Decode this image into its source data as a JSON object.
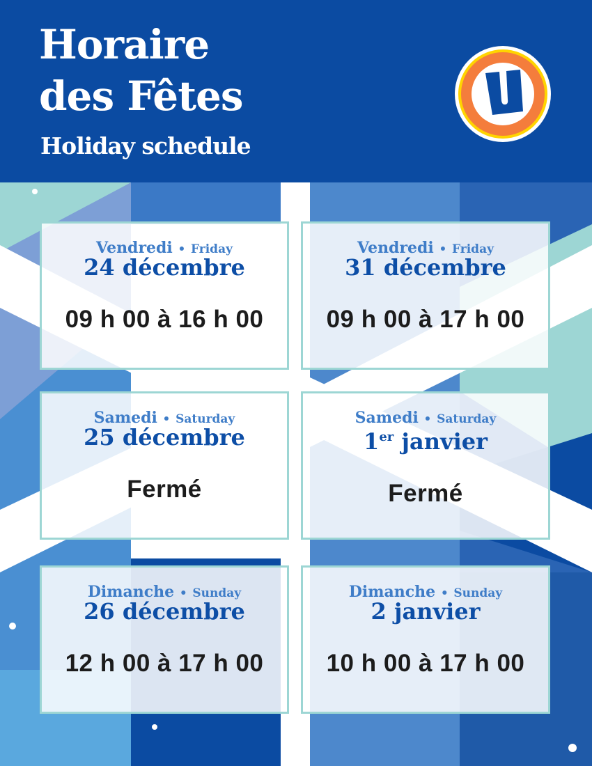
{
  "header": {
    "title_line1": "Horaire",
    "title_line2": "des Fêtes",
    "subtitle": "Holiday schedule",
    "logo_text": "U"
  },
  "colors": {
    "header_blue": "#0b4ba2",
    "card_border": "#9dd6d4",
    "day_blue": "#3f7dc8",
    "date_blue": "#0d4ea6",
    "logo_orange": "#f47d3c",
    "logo_yellow": "#ffd400"
  },
  "schedule": [
    {
      "day_fr": "Vendredi",
      "day_en": "Friday",
      "date": "24 décembre",
      "date_sup": "",
      "hours": "09 h 00 à 16 h 00"
    },
    {
      "day_fr": "Vendredi",
      "day_en": "Friday",
      "date": "31 décembre",
      "date_sup": "",
      "hours": "09 h 00 à 17 h 00"
    },
    {
      "day_fr": "Samedi",
      "day_en": "Saturday",
      "date": "25 décembre",
      "date_sup": "",
      "hours": "Fermé"
    },
    {
      "day_fr": "Samedi",
      "day_en": "Saturday",
      "date_num": "1",
      "date_sup": "er",
      "date": " janvier",
      "hours": "Fermé"
    },
    {
      "day_fr": "Dimanche",
      "day_en": "Sunday",
      "date": "26 décembre",
      "date_sup": "",
      "hours": "12 h 00 à 17 h 00"
    },
    {
      "day_fr": "Dimanche",
      "day_en": "Sunday",
      "date": "2 janvier",
      "date_sup": "",
      "hours": "10 h 00 à 17 h 00"
    }
  ],
  "separator": "•"
}
